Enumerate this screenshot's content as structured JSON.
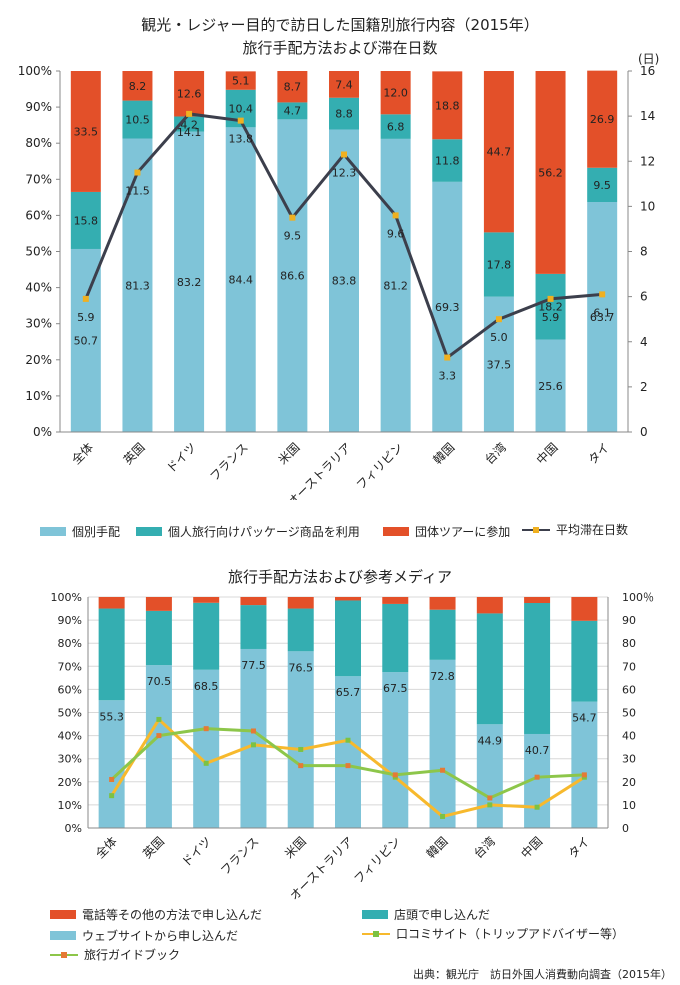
{
  "header": {
    "title_line1": "観光・レジャー目的で訪日した国籍別旅行内容（2015年）",
    "title_line2": "旅行手配方法および滞在日数",
    "chart2_title": "旅行手配方法および参考メディア",
    "source": "出典：観光庁　訪日外国人消費動向調査（2015年）"
  },
  "colors": {
    "individual": "#7fc4d8",
    "package": "#34aeb1",
    "group": "#e35029",
    "avg_line": "#3c3f4c",
    "avg_marker": "#f0b020",
    "kuchikomi_line": "#f7b92d",
    "kuchikomi_marker": "#7cc243",
    "guidebook_line": "#8dc64a",
    "guidebook_marker": "#e57a35"
  },
  "chart_data": [
    {
      "type": "bar",
      "stacked": true,
      "title": "旅行手配方法および滞在日数",
      "categories": [
        "全体",
        "英国",
        "ドイツ",
        "フランス",
        "米国",
        "オーストラリア",
        "フィリピン",
        "韓国",
        "台湾",
        "中国",
        "タイ"
      ],
      "ylim": [
        0,
        100
      ],
      "y_ticks": [
        "0%",
        "10%",
        "20%",
        "30%",
        "40%",
        "50%",
        "60%",
        "70%",
        "80%",
        "90%",
        "100%"
      ],
      "y2lim": [
        0,
        16
      ],
      "y2_ticks": [
        "0",
        "2",
        "4",
        "6",
        "8",
        "10",
        "12",
        "14",
        "16"
      ],
      "y2_unit": "(日)",
      "series": [
        {
          "name": "個別手配",
          "values": [
            50.7,
            81.3,
            83.2,
            84.4,
            86.6,
            83.8,
            81.2,
            69.3,
            37.5,
            25.6,
            63.7
          ]
        },
        {
          "name": "個人旅行向けパッケージ商品を利用",
          "values": [
            15.8,
            10.5,
            4.2,
            10.4,
            4.7,
            8.8,
            6.8,
            11.8,
            17.8,
            18.2,
            9.5
          ]
        },
        {
          "name": "団体ツアーに参加",
          "values": [
            33.5,
            8.2,
            12.6,
            5.1,
            8.7,
            7.4,
            12.0,
            18.8,
            44.7,
            56.2,
            26.9
          ]
        }
      ],
      "line": {
        "name": "平均滞在日数",
        "values": [
          5.9,
          11.5,
          14.1,
          13.8,
          9.5,
          12.3,
          9.6,
          3.3,
          5.0,
          5.9,
          6.1
        ]
      },
      "legend": [
        "個別手配",
        "個人旅行向けパッケージ商品を利用",
        "団体ツアーに参加",
        "平均滞在日数"
      ],
      "legend_position": "bottom",
      "grid": false
    },
    {
      "type": "bar",
      "stacked": true,
      "title": "旅行手配方法および参考メディア",
      "categories": [
        "全体",
        "英国",
        "ドイツ",
        "フランス",
        "米国",
        "オーストラリア",
        "フィリピン",
        "韓国",
        "台湾",
        "中国",
        "タイ"
      ],
      "ylim": [
        0,
        100
      ],
      "y_ticks": [
        "0%",
        "10%",
        "20%",
        "30%",
        "40%",
        "50%",
        "60%",
        "70%",
        "80%",
        "90%",
        "100%"
      ],
      "y2lim": [
        0,
        100
      ],
      "y2_ticks": [
        "0",
        "10",
        "20",
        "30",
        "40",
        "50",
        "60",
        "70",
        "80",
        "90",
        "100％"
      ],
      "series": [
        {
          "name": "ウェブサイトから申し込んだ",
          "values": [
            55.3,
            70.5,
            68.5,
            77.5,
            76.5,
            65.7,
            67.5,
            72.8,
            44.9,
            40.7,
            54.7
          ],
          "labeled": true
        },
        {
          "name": "店頭で申し込んだ",
          "values": [
            39.7,
            23.5,
            29.0,
            19.0,
            18.5,
            32.8,
            29.5,
            21.7,
            48.0,
            56.7,
            35.0
          ],
          "labeled": false
        },
        {
          "name": "電話等その他の方法で申し込んだ",
          "values": [
            5.0,
            6.0,
            2.5,
            3.5,
            5.0,
            1.5,
            3.0,
            5.5,
            7.1,
            2.6,
            10.3
          ],
          "labeled": false
        }
      ],
      "lines": [
        {
          "name": "口コミサイト（トリップアドバイザー等）",
          "values": [
            14,
            47,
            28,
            36,
            34,
            38,
            22,
            5,
            10,
            9,
            22
          ]
        },
        {
          "name": "旅行ガイドブック",
          "values": [
            21,
            40,
            43,
            42,
            27,
            27,
            23,
            25,
            13,
            22,
            23
          ]
        }
      ],
      "legend": [
        "電話等その他の方法で申し込んだ",
        "店頭で申し込んだ",
        "ウェブサイトから申し込んだ",
        "口コミサイト（トリップアドバイザー等）",
        "旅行ガイドブック"
      ],
      "legend_position": "bottom",
      "grid": true
    }
  ]
}
